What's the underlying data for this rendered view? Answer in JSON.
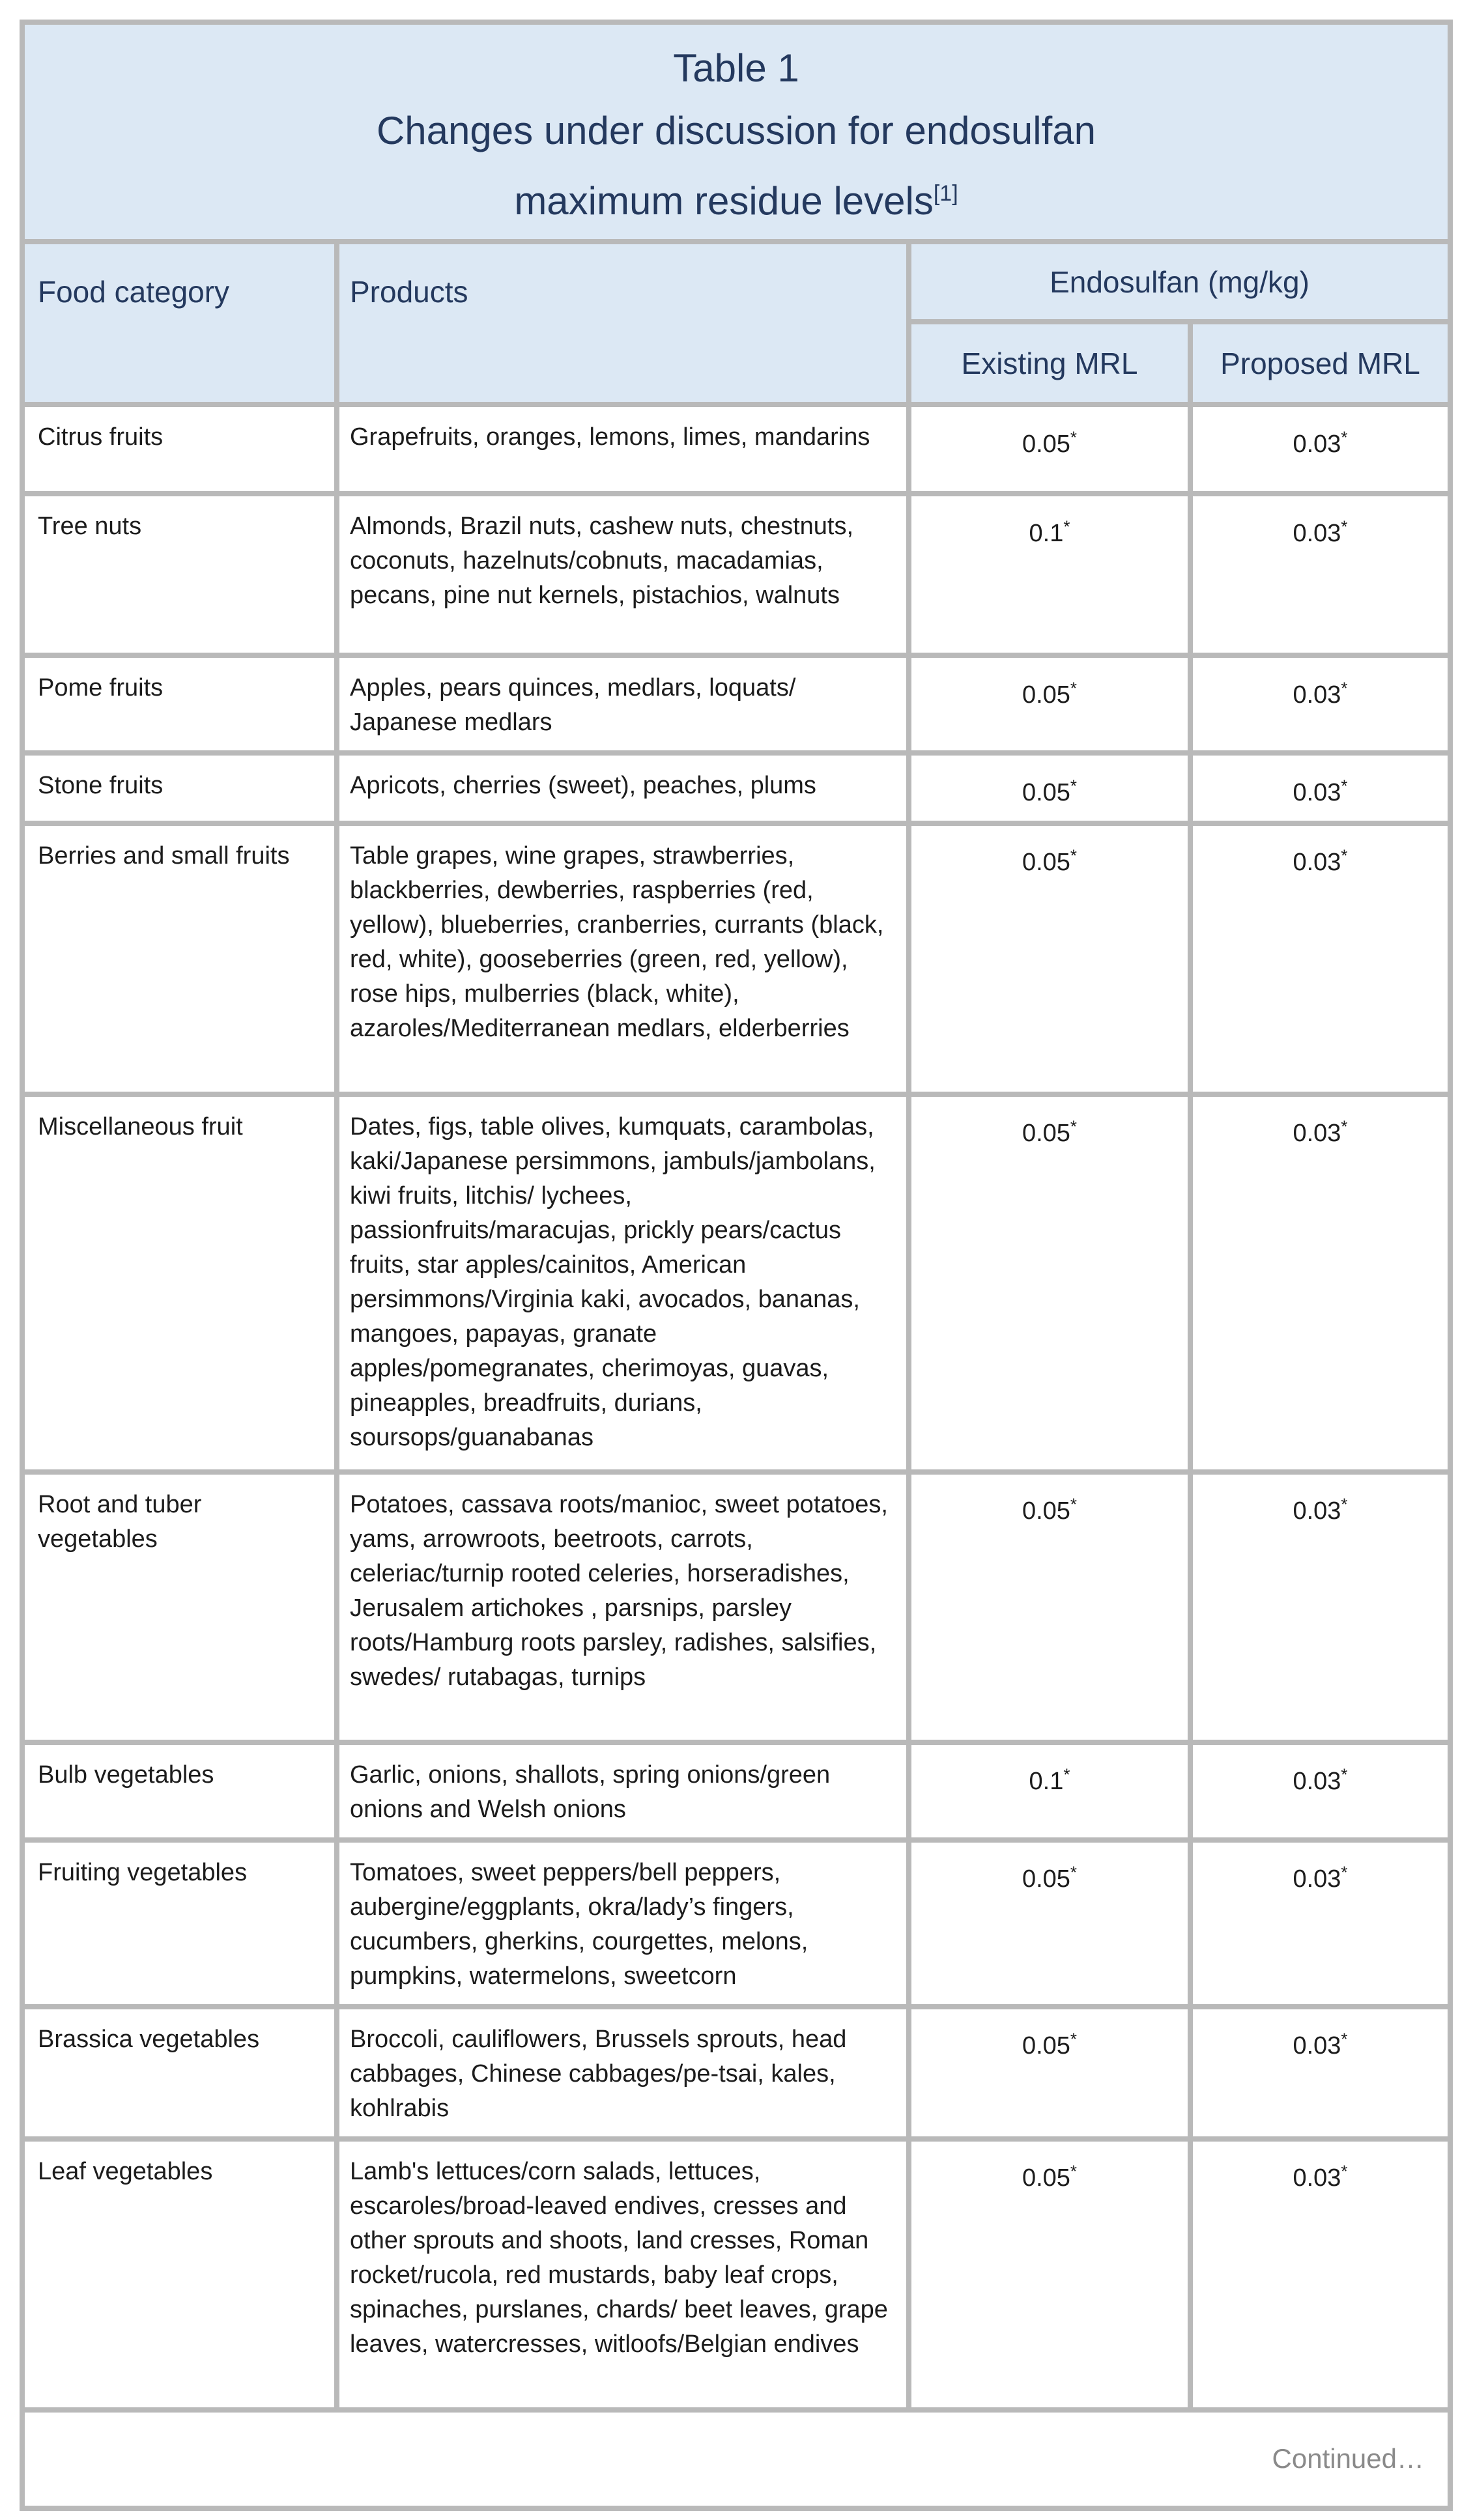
{
  "table": {
    "title": {
      "line1": "Table 1",
      "line2": "Changes under discussion for endosulfan",
      "line3": "maximum residue levels",
      "footnote_marker": "[1]"
    },
    "columns": {
      "food_category": "Food category",
      "products": "Products",
      "endosulfan_group": "Endosulfan (mg/kg)",
      "existing_mrl": "Existing MRL",
      "proposed_mrl": "Proposed MRL"
    },
    "rows": [
      {
        "category": "Citrus fruits",
        "products": "Grapefruits, oranges, lemons, limes, mandarins",
        "existing": "0.05*",
        "proposed": "0.03*"
      },
      {
        "category": "Tree nuts",
        "products": "Almonds, Brazil nuts, cashew nuts, chestnuts, coconuts, hazelnuts/cobnuts, macadamias, pecans, pine nut kernels, pistachios, walnuts",
        "existing": "0.1*",
        "proposed": "0.03*"
      },
      {
        "category": "Pome fruits",
        "products": "Apples, pears quinces, medlars, loquats/ Japanese medlars",
        "existing": "0.05*",
        "proposed": "0.03*"
      },
      {
        "category": "Stone fruits",
        "products": "Apricots, cherries (sweet), peaches, plums",
        "existing": "0.05*",
        "proposed": "0.03*"
      },
      {
        "category": "Berries and small fruits",
        "products": "Table grapes, wine grapes, strawberries, blackberries, dewberries, raspberries (red, yellow), blueberries, cranberries, currants (black, red, white), gooseberries (green, red, yellow), rose hips, mulberries (black, white), azaroles/Mediterranean medlars, elderberries",
        "existing": "0.05*",
        "proposed": "0.03*"
      },
      {
        "category": "Miscellaneous fruit",
        "products": "Dates, figs, table olives, kumquats, carambolas, kaki/Japanese persimmons, jambuls/jambolans, kiwi fruits, litchis/ lychees, passionfruits/maracujas, prickly pears/cactus fruits, star apples/cainitos, American persimmons/Virginia kaki, avocados, bananas, mangoes, papayas, granate apples/pomegranates, cherimoyas, guavas, pineapples, breadfruits, durians, soursops/guanabanas",
        "existing": "0.05*",
        "proposed": "0.03*"
      },
      {
        "category": "Root and tuber vegetables",
        "products": "Potatoes, cassava roots/manioc, sweet potatoes, yams, arrowroots, beetroots, carrots, celeriac/turnip rooted celeries, horseradishes, Jerusalem artichokes , parsnips, parsley roots/Hamburg roots parsley, radishes, salsifies, swedes/ rutabagas, turnips",
        "existing": "0.05*",
        "proposed": "0.03*"
      },
      {
        "category": "Bulb vegetables",
        "products": "Garlic, onions, shallots, spring onions/green onions and Welsh onions",
        "existing": "0.1*",
        "proposed": "0.03*"
      },
      {
        "category": "Fruiting vegetables",
        "products": "Tomatoes, sweet peppers/bell peppers, aubergine/eggplants, okra/lady’s fingers, cucumbers, gherkins, courgettes, melons, pumpkins, watermelons, sweetcorn",
        "existing": "0.05*",
        "proposed": "0.03*"
      },
      {
        "category": "Brassica vegetables",
        "products": "Broccoli, cauliflowers, Brussels sprouts, head cabbages, Chinese cabbages/pe-tsai, kales, kohlrabis",
        "existing": "0.05*",
        "proposed": "0.03*"
      },
      {
        "category": "Leaf vegetables",
        "products": "Lamb's lettuces/corn salads, lettuces, escaroles/broad-leaved endives, cresses and other sprouts and shoots, land cresses, Roman rocket/rucola, red mustards, baby leaf crops, spinaches, purslanes, chards/ beet leaves, grape leaves, watercresses, witloofs/Belgian endives",
        "existing": "0.05*",
        "proposed": "0.03*"
      }
    ],
    "footer": {
      "continued": "Continued…"
    }
  },
  "colors": {
    "header_background": "#dce8f4",
    "header_text": "#24395e",
    "body_text": "#1c1c1c",
    "border": "#b9b9b9",
    "continued_text": "#8a8a8a"
  }
}
